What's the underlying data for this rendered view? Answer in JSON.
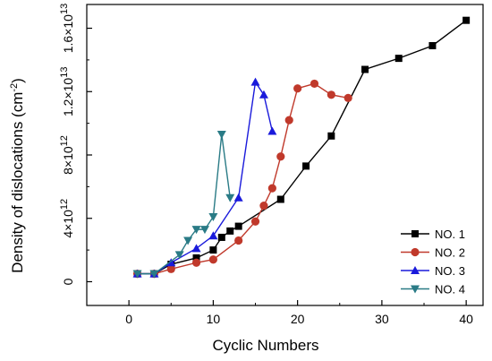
{
  "chart_data": {
    "type": "line",
    "title": "",
    "xlabel": "Cyclic Numbers",
    "ylabel": "Density of dislocations (cm",
    "ylabel_sup": "-2",
    "ylabel_end": ")",
    "xlim": [
      -5,
      42
    ],
    "ylim": [
      -1500000000000.0,
      17500000000000.0
    ],
    "x_ticks": [
      {
        "value": 0,
        "label": "0"
      },
      {
        "value": 10,
        "label": "10"
      },
      {
        "value": 20,
        "label": "20"
      },
      {
        "value": 30,
        "label": "30"
      },
      {
        "value": 40,
        "label": "40"
      }
    ],
    "y_ticks": [
      {
        "value": 0,
        "mant": "0",
        "exp": ""
      },
      {
        "value": 4000000000000.0,
        "mant": "4×10",
        "exp": "12"
      },
      {
        "value": 8000000000000.0,
        "mant": "8×10",
        "exp": "12"
      },
      {
        "value": 12000000000000.0,
        "mant": "1.2×10",
        "exp": "13"
      },
      {
        "value": 16000000000000.0,
        "mant": "1.6×10",
        "exp": "13"
      }
    ],
    "legend_position": "bottom-right",
    "series": [
      {
        "name": "NO. 1",
        "color": "#000000",
        "marker": "square",
        "x": [
          1,
          3,
          5,
          8,
          10,
          11,
          12,
          13,
          18,
          21,
          24,
          28,
          32,
          36,
          40
        ],
        "y": [
          500000000000.0,
          500000000000.0,
          1100000000000.0,
          1500000000000.0,
          2000000000000.0,
          2800000000000.0,
          3200000000000.0,
          3500000000000.0,
          5200000000000.0,
          7300000000000.0,
          9200000000000.0,
          13400000000000.0,
          14100000000000.0,
          14900000000000.0,
          16500000000000.0
        ]
      },
      {
        "name": "NO. 2",
        "color": "#c0392b",
        "marker": "circle",
        "x": [
          1,
          3,
          5,
          8,
          10,
          13,
          15,
          16,
          17,
          18,
          19,
          20,
          22,
          24,
          26
        ],
        "y": [
          500000000000.0,
          500000000000.0,
          800000000000.0,
          1200000000000.0,
          1400000000000.0,
          2600000000000.0,
          3800000000000.0,
          4800000000000.0,
          5900000000000.0,
          7900000000000.0,
          10200000000000.0,
          12200000000000.0,
          12500000000000.0,
          11800000000000.0,
          11600000000000.0
        ]
      },
      {
        "name": "NO. 3",
        "color": "#1a1adb",
        "marker": "triangle-up",
        "x": [
          1,
          3,
          5,
          8,
          10,
          13,
          15,
          16,
          17
        ],
        "y": [
          500000000000.0,
          500000000000.0,
          1200000000000.0,
          2100000000000.0,
          2900000000000.0,
          5300000000000.0,
          12600000000000.0,
          11800000000000.0,
          9500000000000.0
        ]
      },
      {
        "name": "NO. 4",
        "color": "#2a7b86",
        "marker": "triangle-down",
        "x": [
          1,
          3,
          6,
          7,
          8,
          9,
          10,
          11,
          12
        ],
        "y": [
          500000000000.0,
          500000000000.0,
          1700000000000.0,
          2600000000000.0,
          3300000000000.0,
          3300000000000.0,
          4100000000000.0,
          9300000000000.0,
          5300000000000.0
        ]
      }
    ]
  }
}
